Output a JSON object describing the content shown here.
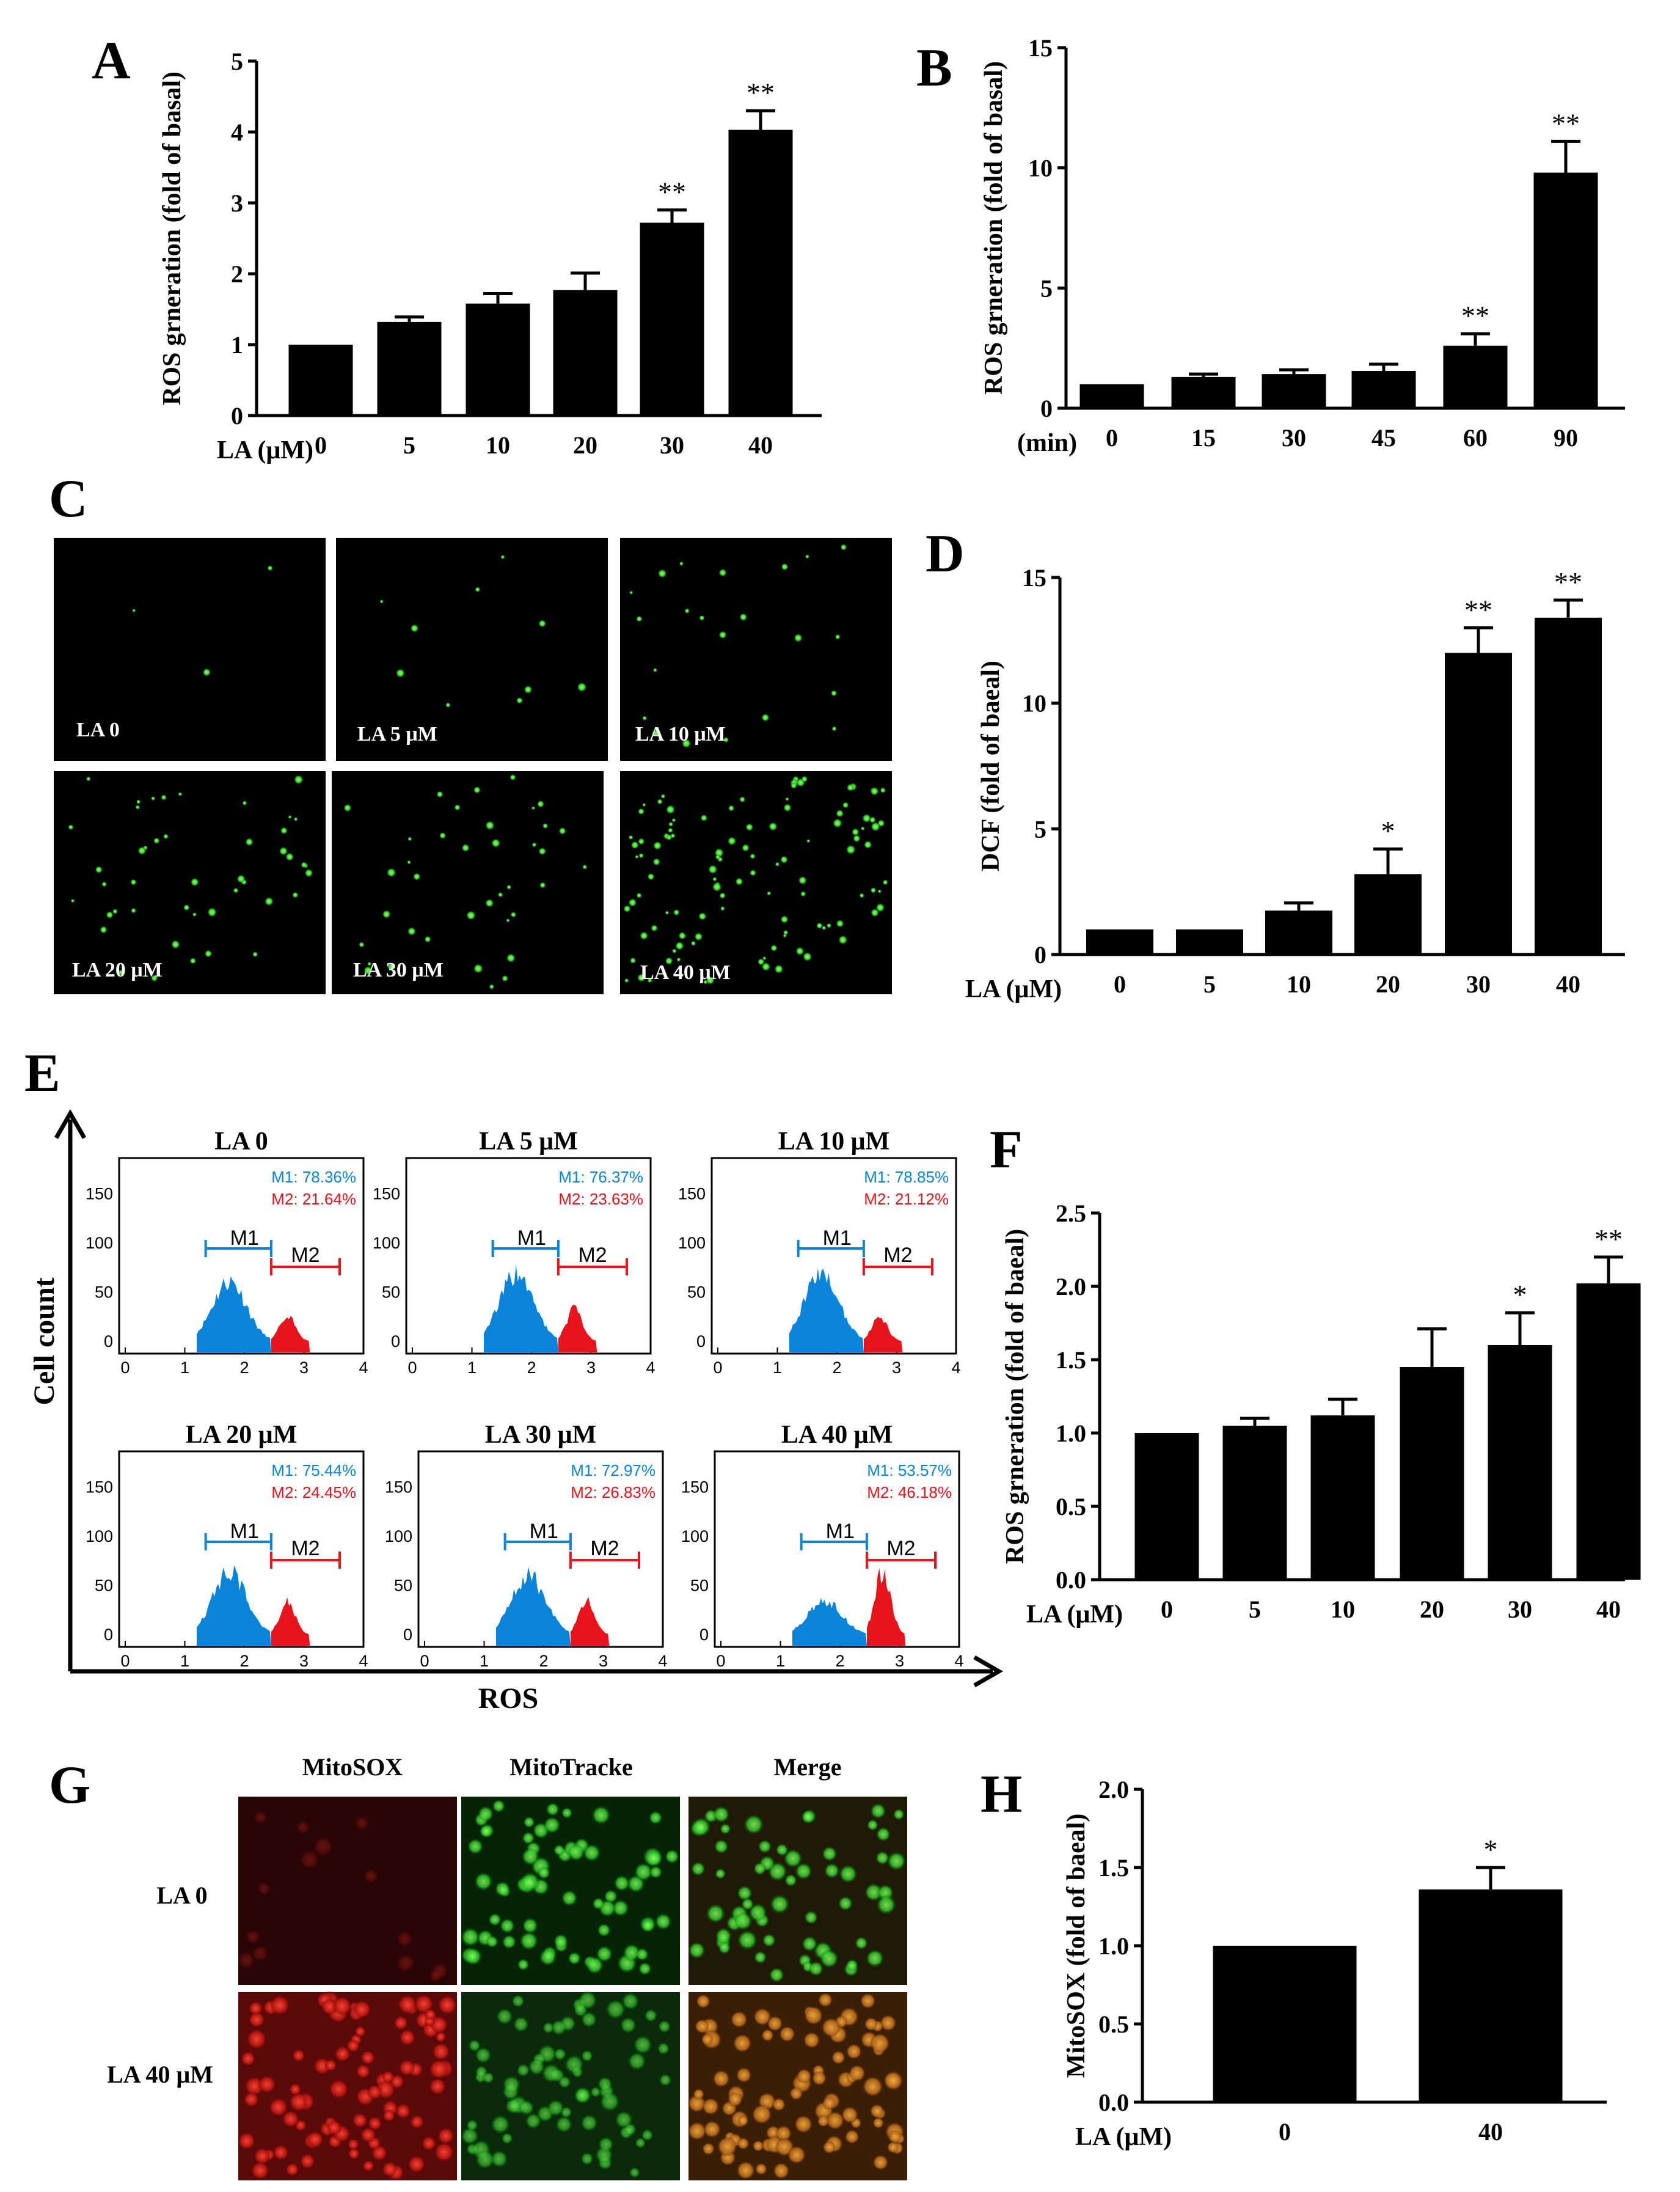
{
  "panel_labels": [
    "A",
    "B",
    "C",
    "D",
    "E",
    "F",
    "G",
    "H"
  ],
  "chart_data": [
    {
      "panel": "A",
      "type": "bar",
      "ylabel": "ROS grneration (fold of basal)",
      "xlabel": "LA (μM)",
      "categories": [
        "0",
        "5",
        "10",
        "20",
        "30",
        "40"
      ],
      "values": [
        1.0,
        1.32,
        1.58,
        1.77,
        2.72,
        4.03
      ],
      "errors": [
        0.0,
        0.07,
        0.14,
        0.24,
        0.18,
        0.27
      ],
      "sig": [
        "",
        "",
        "",
        "",
        "**",
        "**"
      ],
      "ylim": [
        0,
        5
      ],
      "yticks": [
        "0",
        "1",
        "2",
        "3",
        "4",
        "5"
      ]
    },
    {
      "panel": "B",
      "type": "bar",
      "ylabel": "ROS grneration (fold of basal)",
      "xlabel": "(min)",
      "categories": [
        "0",
        "15",
        "30",
        "45",
        "60",
        "90"
      ],
      "values": [
        1.0,
        1.3,
        1.42,
        1.55,
        2.6,
        9.8
      ],
      "errors": [
        0.0,
        0.12,
        0.18,
        0.28,
        0.5,
        1.3
      ],
      "sig": [
        "",
        "",
        "",
        "",
        "**",
        "**"
      ],
      "ylim": [
        0,
        15
      ],
      "yticks": [
        "0",
        "5",
        "10",
        "15"
      ]
    },
    {
      "panel": "D",
      "type": "bar",
      "ylabel": "DCF (fold of baeal)",
      "xlabel": "LA (μM)",
      "categories": [
        "0",
        "5",
        "10",
        "20",
        "30",
        "40"
      ],
      "values": [
        1.0,
        1.0,
        1.75,
        3.2,
        12.0,
        13.4
      ],
      "errors": [
        0.0,
        0.0,
        0.3,
        1.0,
        1.0,
        0.7
      ],
      "sig": [
        "",
        "",
        "",
        "*",
        "**",
        "**"
      ],
      "ylim": [
        0,
        15
      ],
      "yticks": [
        "0",
        "5",
        "10",
        "15"
      ]
    },
    {
      "panel": "F",
      "type": "bar",
      "ylabel": "ROS grneration (fold of baeal)",
      "xlabel": "LA (μM)",
      "categories": [
        "0",
        "5",
        "10",
        "20",
        "30",
        "40"
      ],
      "values": [
        1.0,
        1.05,
        1.12,
        1.45,
        1.6,
        2.02
      ],
      "errors": [
        0.0,
        0.05,
        0.11,
        0.26,
        0.22,
        0.18
      ],
      "sig": [
        "",
        "",
        "",
        "",
        "*",
        "**"
      ],
      "ylim": [
        0,
        2.5
      ],
      "yticks": [
        "0.0",
        "0.5",
        "1.0",
        "1.5",
        "2.0",
        "2.5"
      ]
    },
    {
      "panel": "H",
      "type": "bar",
      "ylabel": "MitoSOX (fold of baeal)",
      "xlabel": "LA (μM)",
      "categories": [
        "0",
        "40"
      ],
      "values": [
        1.0,
        1.36
      ],
      "errors": [
        0.0,
        0.14
      ],
      "sig": [
        "",
        "*"
      ],
      "ylim": [
        0,
        2.0
      ],
      "yticks": [
        "0.0",
        "0.5",
        "1.0",
        "1.5",
        "2.0"
      ]
    }
  ],
  "panel_c": {
    "labels": [
      "LA 0",
      "LA 5 μM",
      "LA 10 μM",
      "LA 20 μM",
      "LA 30 μM",
      "LA 40 μM"
    ],
    "cell_counts": [
      3,
      10,
      22,
      45,
      38,
      110
    ]
  },
  "panel_e": {
    "ylabel": "Cell count",
    "xlabel": "ROS",
    "gate1": "M1",
    "gate2": "M2",
    "xticks": [
      "0",
      "1",
      "2",
      "3",
      "4"
    ],
    "yticks": [
      "0",
      "50",
      "100",
      "150"
    ],
    "m1_color": "#0a84d8",
    "m2_color": "#e8141c",
    "plots": [
      {
        "title": "LA 0",
        "m1": "M1: 78.36%",
        "m2": "M2: 21.64%",
        "m1_peak": 72,
        "m2_peak": 30
      },
      {
        "title": "LA 5 μM",
        "m1": "M1: 76.37%",
        "m2": "M2: 23.63%",
        "m1_peak": 80,
        "m2_peak": 38
      },
      {
        "title": "LA 10 μM",
        "m1": "M1: 78.85%",
        "m2": "M2: 21.12%",
        "m1_peak": 82,
        "m2_peak": 28
      },
      {
        "title": "LA 20 μM",
        "m1": "M1: 75.44%",
        "m2": "M2: 24.45%",
        "m1_peak": 74,
        "m2_peak": 38
      },
      {
        "title": "LA 30 μM",
        "m1": "M1: 72.97%",
        "m2": "M2: 26.83%",
        "m1_peak": 70,
        "m2_peak": 40
      },
      {
        "title": "LA 40 μM",
        "m1": "M1: 53.57%",
        "m2": "M2: 46.18%",
        "m1_peak": 40,
        "m2_peak": 76
      }
    ]
  },
  "panel_g": {
    "columns": [
      "MitoSOX",
      "MitoTracke",
      "Merge"
    ],
    "rows": [
      "LA 0",
      "LA 40 μM"
    ]
  }
}
